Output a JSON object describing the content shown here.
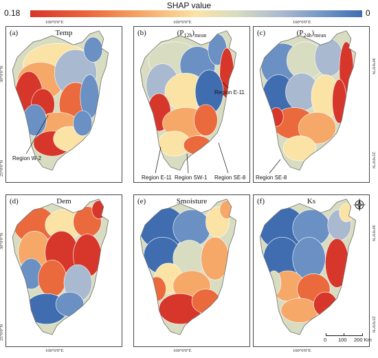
{
  "colorbar": {
    "title": "SHAP value",
    "min_label": "0.18",
    "max_label": "0",
    "colors": [
      "#d7362a",
      "#ea6a3e",
      "#f6a869",
      "#fbe3a6",
      "#d8dcc0",
      "#a9b9cf",
      "#6a90c4",
      "#3f6db0"
    ]
  },
  "axis_ticks": {
    "lon": "100°0'0\"E",
    "lat30": "30°0'0\"N",
    "lat25": "25°0'0\"N"
  },
  "panels": [
    {
      "letter": "(a)",
      "title": "Temp",
      "title_sub": "",
      "dominant": "mixed-red-west",
      "annotations": [
        "Region W-2"
      ]
    },
    {
      "letter": "(b)",
      "title": "(P",
      "title_sub": "12h",
      "title_tail": ")",
      "title_sub2": "mean",
      "dominant": "mixed",
      "annotations": [
        "Region E-11",
        "Region E-11",
        "Region SW-1",
        "Region SE-8"
      ]
    },
    {
      "letter": "(c)",
      "title": "(P",
      "title_sub": "24h",
      "title_tail": ")",
      "title_sub2": "mean",
      "dominant": "blue-west-red-east",
      "annotations": [
        "Region SE-8"
      ]
    },
    {
      "letter": "(d)",
      "title": "Dem",
      "title_sub": "",
      "dominant": "red-center",
      "annotations": []
    },
    {
      "letter": "(e)",
      "title": "Smoisture",
      "title_sub": "",
      "dominant": "blue-north-red-south",
      "annotations": []
    },
    {
      "letter": "(f)",
      "title": "Ks",
      "title_sub": "",
      "dominant": "blue-north-red-east",
      "annotations": []
    }
  ],
  "scalebar": {
    "labels": [
      "0",
      "100",
      "200 Km"
    ]
  },
  "compass": {
    "label": "N"
  }
}
